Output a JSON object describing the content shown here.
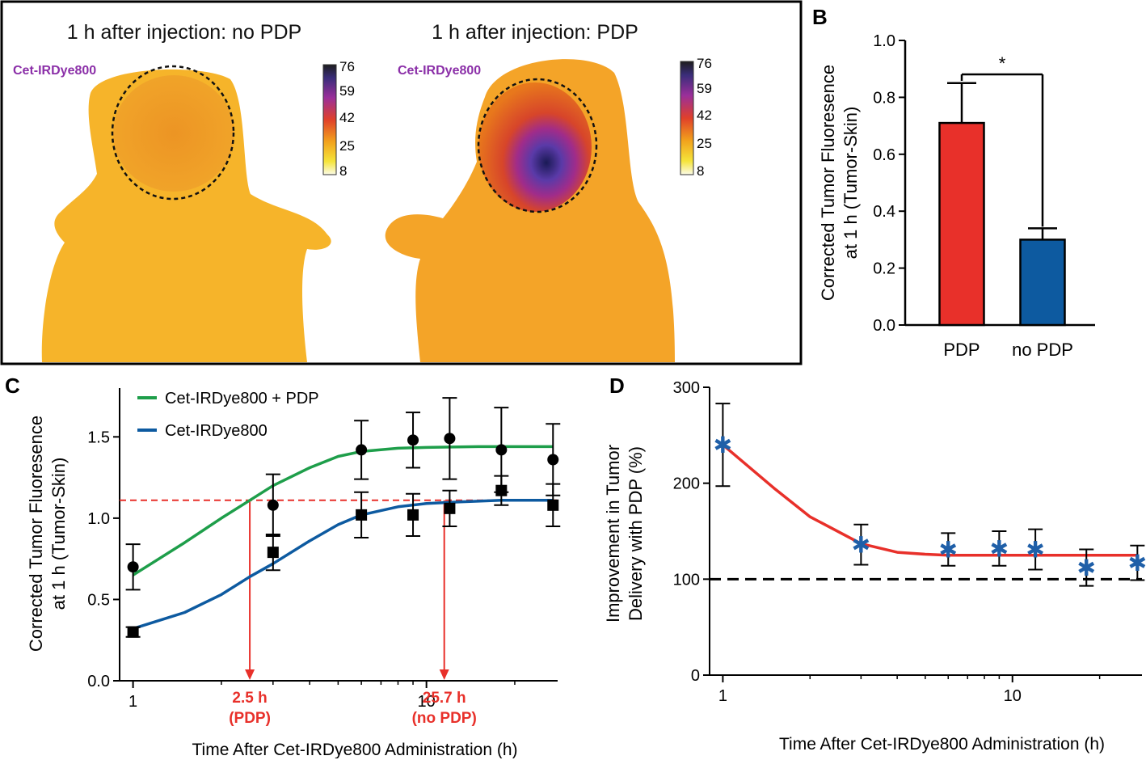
{
  "panel_letters": {
    "a": "A",
    "b": "B",
    "c": "C",
    "d": "D"
  },
  "panel_a": {
    "left": {
      "title": "1 h after injection: no PDP",
      "label": "Cet-IRDye800"
    },
    "right": {
      "title": "1 h after injection: PDP",
      "label": "Cet-IRDye800"
    },
    "colorbar_ticks": [
      "76",
      "59",
      "42",
      "25",
      "8"
    ],
    "label_color": "#8B2FA8"
  },
  "chart_data": [
    {
      "panel": "B",
      "type": "bar",
      "categories": [
        "PDP",
        "no PDP"
      ],
      "values": [
        0.71,
        0.3
      ],
      "errors": [
        0.14,
        0.04
      ],
      "colors": [
        "#E8302A",
        "#0D5AA0"
      ],
      "ylabel_line1": "Corrected Tumor Fluoresence",
      "ylabel_line2": "at 1 h (Tumor-Skin)",
      "ylim": [
        0,
        1.0
      ],
      "yticks": [
        "0.0",
        "0.2",
        "0.4",
        "0.6",
        "0.8",
        "1.0"
      ],
      "significance": "*"
    },
    {
      "panel": "C",
      "type": "scatter",
      "xscale": "log",
      "xlim": [
        0.9,
        28
      ],
      "ylim": [
        0,
        1.8
      ],
      "xticks": [
        "1",
        "10"
      ],
      "yticks": [
        "0.0",
        "0.5",
        "1.0",
        "1.5"
      ],
      "xlabel": "Time After Cet-IRDye800 Administration (h)",
      "ylabel_line1": "Corrected Tumor Fluoresence",
      "ylabel_line2": "at 1 h (Tumor-Skin)",
      "series": [
        {
          "name": "Cet-IRDye800 + PDP",
          "color": "#1E9E4A",
          "marker": "circle",
          "x": [
            1,
            3,
            6,
            9,
            12,
            18,
            27
          ],
          "y": [
            0.7,
            1.08,
            1.42,
            1.48,
            1.49,
            1.42,
            1.36
          ],
          "err": [
            0.14,
            0.19,
            0.18,
            0.17,
            0.25,
            0.26,
            0.22
          ],
          "fit_x": [
            1,
            1.5,
            2,
            2.5,
            3,
            4,
            5,
            6,
            8,
            10,
            15,
            20,
            27
          ],
          "fit_y": [
            0.65,
            0.85,
            1.0,
            1.11,
            1.2,
            1.31,
            1.38,
            1.41,
            1.43,
            1.435,
            1.44,
            1.44,
            1.44
          ]
        },
        {
          "name": "Cet-IRDye800",
          "color": "#0D5AA0",
          "marker": "square",
          "x": [
            1,
            3,
            6,
            9,
            12,
            18,
            27
          ],
          "y": [
            0.3,
            0.79,
            1.02,
            1.02,
            1.06,
            1.17,
            1.08
          ],
          "err": [
            0.03,
            0.11,
            0.14,
            0.13,
            0.11,
            0.09,
            0.13
          ],
          "fit_x": [
            1,
            1.5,
            2,
            2.5,
            3,
            4,
            5,
            6,
            8,
            10,
            13,
            18,
            27
          ],
          "fit_y": [
            0.32,
            0.42,
            0.53,
            0.64,
            0.72,
            0.86,
            0.96,
            1.02,
            1.07,
            1.09,
            1.1,
            1.11,
            1.11
          ]
        }
      ],
      "threshold": {
        "y": 1.11,
        "color": "#E8302A"
      },
      "markers": [
        {
          "x": 2.5,
          "line1": "2.5 h",
          "line2": "(PDP)"
        },
        {
          "x": 11.5,
          "line1": "25.7 h",
          "line2": "(no PDP)"
        }
      ]
    },
    {
      "panel": "D",
      "type": "scatter",
      "xscale": "log",
      "xlim": [
        0.9,
        28
      ],
      "ylim": [
        0,
        300
      ],
      "xticks": [
        "1",
        "10"
      ],
      "yticks": [
        "0",
        "100",
        "200",
        "300"
      ],
      "xlabel": "Time After Cet-IRDye800 Administration (h)",
      "ylabel_line1": "Improvement in Tumor",
      "ylabel_line2": "Delivery with PDP (%)",
      "series": [
        {
          "name": "Improvement",
          "color": "#1F5FA8",
          "marker": "star",
          "x": [
            1,
            3,
            6,
            9,
            12,
            18,
            27
          ],
          "y": [
            240,
            136,
            131,
            132,
            131,
            112,
            117
          ],
          "err": [
            43,
            21,
            17,
            18,
            21,
            19,
            18
          ],
          "fit_x": [
            1,
            1.5,
            2,
            3,
            4,
            5,
            6,
            8,
            10,
            15,
            20,
            27
          ],
          "fit_y": [
            240,
            195,
            165,
            137,
            128,
            126,
            125,
            125,
            125,
            125,
            125,
            125
          ],
          "fit_color": "#E8302A"
        }
      ],
      "reference_line": {
        "y": 100
      }
    }
  ]
}
